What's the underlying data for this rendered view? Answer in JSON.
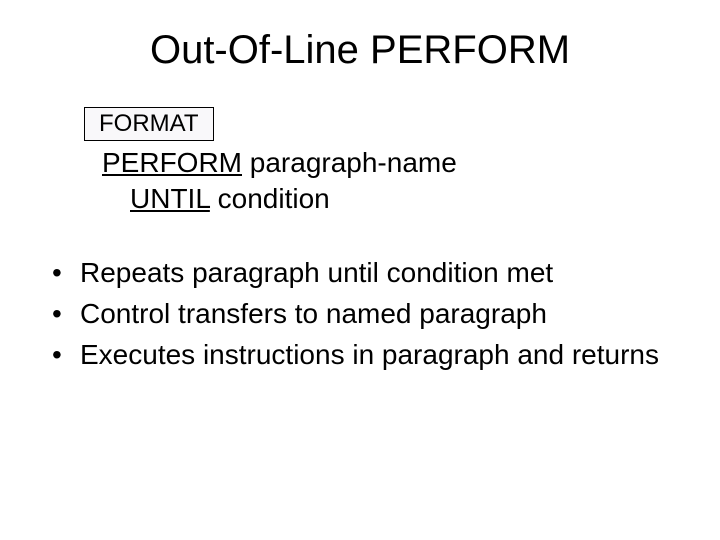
{
  "title": "Out-Of-Line PERFORM",
  "format": {
    "label": "FORMAT",
    "box_bg": "#f9f8fa",
    "box_border": "#000000",
    "line1_keyword": "PERFORM",
    "line1_rest": " paragraph-name",
    "line2_keyword": "UNTIL",
    "line2_rest": " condition"
  },
  "bullets": [
    "Repeats paragraph until condition met",
    "Control transfers to named paragraph",
    "Executes instructions in paragraph and returns"
  ],
  "colors": {
    "background": "#ffffff",
    "text": "#000000"
  },
  "fonts": {
    "family": "Arial",
    "title_size_pt": 30,
    "body_size_pt": 21
  }
}
